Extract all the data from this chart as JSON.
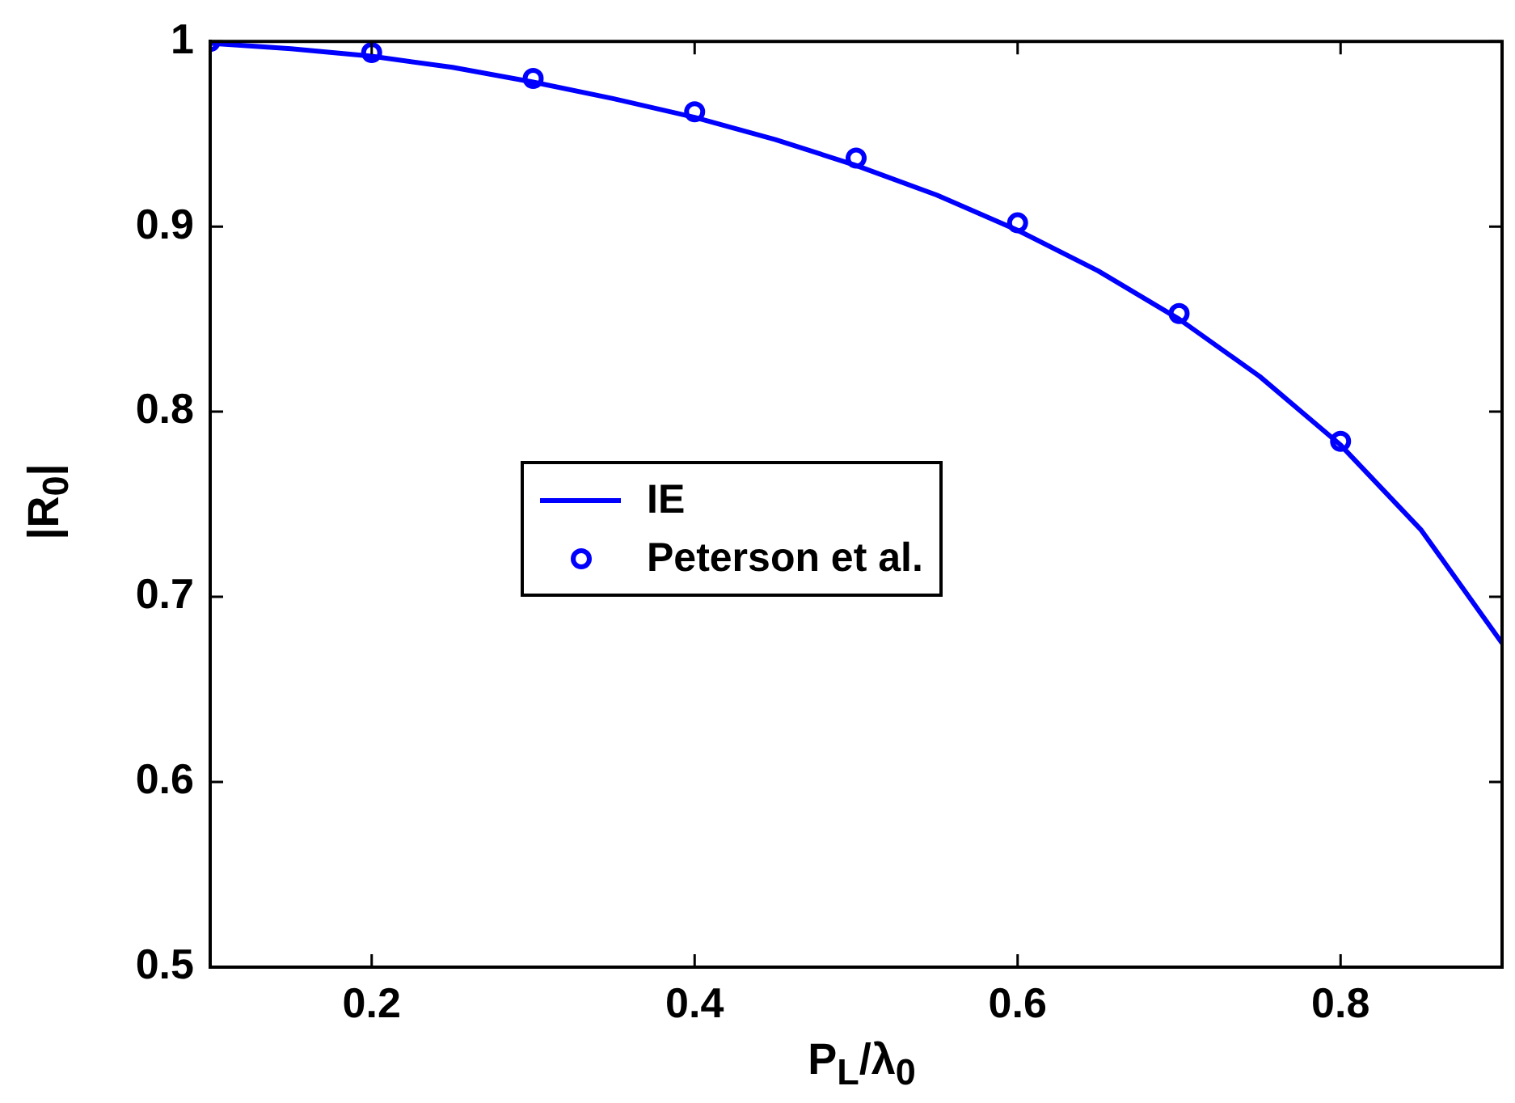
{
  "chart_data": {
    "type": "line",
    "xlabel": "P$_{L}$/λ$_{0}$",
    "ylabel": "|R$_{0}$|",
    "xlim": [
      0.1,
      0.9
    ],
    "xticks": [
      0.2,
      0.4,
      0.6,
      0.8
    ],
    "ylim": [
      0.5,
      1
    ],
    "yticks": [
      0.5,
      0.6,
      0.7,
      0.8,
      0.9,
      1
    ],
    "grid": false,
    "legend": "left",
    "series": [
      {
        "name": "IE",
        "color": "#0000ff",
        "marker": "none",
        "line_style": "solid",
        "x": [
          0.1,
          0.15,
          0.2,
          0.25,
          0.3,
          0.35,
          0.4,
          0.45,
          0.5,
          0.55,
          0.6,
          0.65,
          0.7,
          0.75,
          0.8,
          0.85,
          0.9
        ],
        "values": [
          0.999,
          0.996,
          0.992,
          0.986,
          0.978,
          0.969,
          0.959,
          0.947,
          0.933,
          0.917,
          0.898,
          0.876,
          0.85,
          0.819,
          0.782,
          0.736,
          0.675
        ]
      },
      {
        "name": "Peterson et al.",
        "type": "scatter",
        "color": "#0000ff",
        "marker": "circle",
        "x": [
          0.1,
          0.2,
          0.3,
          0.4,
          0.5,
          0.6,
          0.7,
          0.8
        ],
        "values": [
          1.0,
          0.994,
          0.98,
          0.962,
          0.937,
          0.902,
          0.853,
          0.784
        ]
      }
    ]
  }
}
